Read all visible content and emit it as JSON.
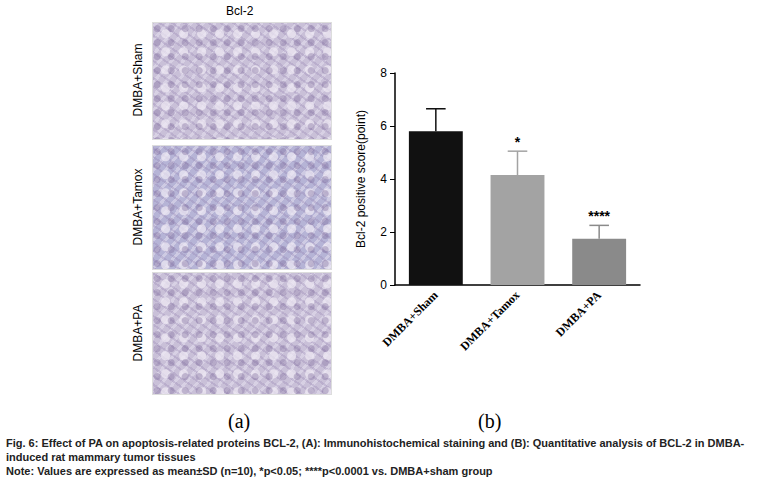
{
  "chart_data": {
    "type": "bar",
    "categories": [
      "DMBA+Sham",
      "DMBA+Tamox",
      "DMBA+PA"
    ],
    "values": [
      5.8,
      4.15,
      1.75
    ],
    "errors": [
      0.85,
      0.9,
      0.5
    ],
    "significance": [
      null,
      "*",
      "****"
    ],
    "colors": [
      "#111111",
      "#a3a3a3",
      "#8a8a8a"
    ],
    "ylabel": "Bcl-2 positive score(point)",
    "ylim": [
      0,
      8
    ],
    "yticks": [
      0,
      2,
      4,
      6,
      8
    ],
    "grid": false,
    "panel_label": "(b)"
  },
  "panel_a": {
    "title": "Bcl-2",
    "rows": [
      "DMBA+Sham",
      "DMBA+Tamox",
      "DMBA+PA"
    ],
    "panel_label": "(a)"
  },
  "caption": [
    "Fig. 6: Effect of PA on apoptosis-related proteins BCL-2, (A): Immunohistochemical staining and (B): Quantitative analysis of BCL-2 in DMBA-induced rat mammary tumor tissues",
    "Note: Values are expressed as mean±SD (n=10), *p<0.05; ****p<0.0001 vs. DMBA+sham group"
  ]
}
